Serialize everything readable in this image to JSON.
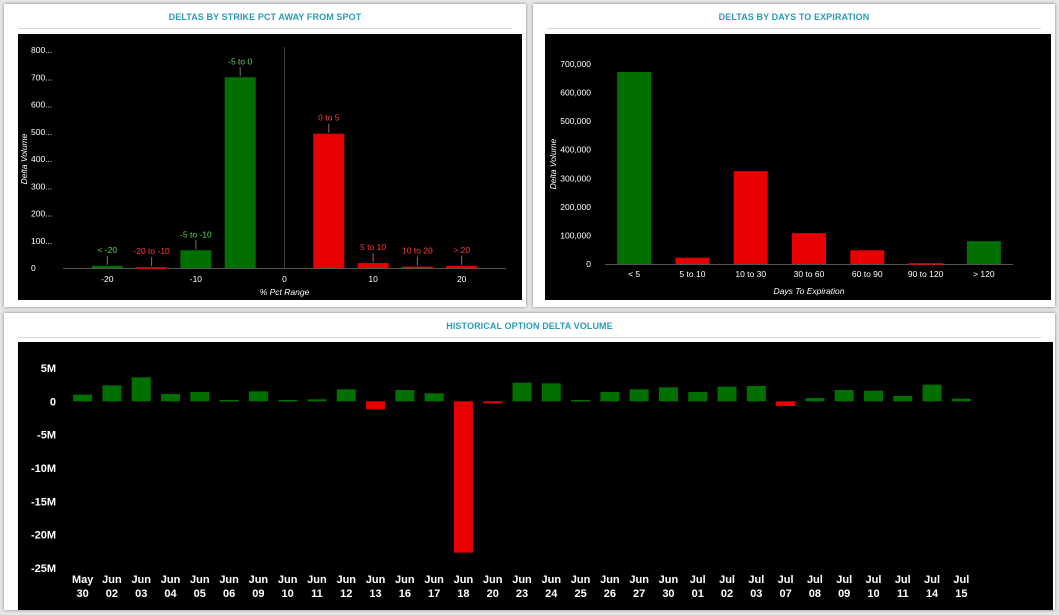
{
  "panels": {
    "strike": {
      "title": "DELTAS BY STRIKE PCT AWAY FROM SPOT"
    },
    "dte": {
      "title": "DELTAS BY DAYS TO EXPIRATION"
    },
    "hist": {
      "title": "HISTORICAL OPTION DELTA VOLUME"
    }
  },
  "colors": {
    "positive": "#027000",
    "negative": "#e80000",
    "background": "#000000",
    "axis_text": "#ffffff",
    "title": "#2a9bb5",
    "label_green": "#5fd35f",
    "label_red": "#ff3b3b"
  },
  "chart_data": [
    {
      "id": "strike",
      "type": "bar",
      "title": "DELTAS BY STRIKE PCT AWAY FROM SPOT",
      "xlabel": "% Pct Range",
      "ylabel": "Delta Volume",
      "yticks": [
        "0",
        "100...",
        "200...",
        "300...",
        "400...",
        "500...",
        "600...",
        "700...",
        "800..."
      ],
      "ylim": [
        0,
        800
      ],
      "xlim": [
        -25,
        25
      ],
      "xticks": [
        "-20",
        "-10",
        "0",
        "10",
        "20"
      ],
      "bars": [
        {
          "label": "< -20",
          "x": -20,
          "value": 8,
          "sign": "positive"
        },
        {
          "label": "-20 to -10",
          "x": -15,
          "value": 3,
          "sign": "negative"
        },
        {
          "label": "-5 to -10",
          "x": -10,
          "value": 65,
          "sign": "positive"
        },
        {
          "label": "-5 to 0",
          "x": -5,
          "value": 700,
          "sign": "positive"
        },
        {
          "label": "0 to 5",
          "x": 5,
          "value": 493,
          "sign": "negative"
        },
        {
          "label": "5 to 10",
          "x": 10,
          "value": 18,
          "sign": "negative"
        },
        {
          "label": "10 to 20",
          "x": 15,
          "value": 5,
          "sign": "negative"
        },
        {
          "label": "> 20",
          "x": 20,
          "value": 8,
          "sign": "negative"
        }
      ]
    },
    {
      "id": "dte",
      "type": "bar",
      "title": "DELTAS BY DAYS TO EXPIRATION",
      "xlabel": "Days To Expiration",
      "ylabel": "Delta Volume",
      "yticks": [
        "0",
        "100,000",
        "200,000",
        "300,000",
        "400,000",
        "500,000",
        "600,000",
        "700,000"
      ],
      "ylim": [
        0,
        700000
      ],
      "categories": [
        "< 5",
        "5 to 10",
        "10 to 30",
        "30 to 60",
        "60 to 90",
        "90 to 120",
        "> 120"
      ],
      "values": [
        672000,
        22000,
        325000,
        108000,
        48000,
        3000,
        80000
      ],
      "signs": [
        "positive",
        "negative",
        "negative",
        "negative",
        "negative",
        "negative",
        "positive"
      ]
    },
    {
      "id": "hist",
      "type": "bar",
      "title": "HISTORICAL OPTION DELTA VOLUME",
      "xlabel": "",
      "ylabel": "",
      "yticks": [
        "5M",
        "0",
        "-5M",
        "-10M",
        "-15M",
        "-20M",
        "-25M"
      ],
      "ylim": [
        -25,
        5
      ],
      "unit": "M",
      "categories": [
        [
          "May",
          "30"
        ],
        [
          "Jun",
          "02"
        ],
        [
          "Jun",
          "03"
        ],
        [
          "Jun",
          "04"
        ],
        [
          "Jun",
          "05"
        ],
        [
          "Jun",
          "06"
        ],
        [
          "Jun",
          "09"
        ],
        [
          "Jun",
          "10"
        ],
        [
          "Jun",
          "11"
        ],
        [
          "Jun",
          "12"
        ],
        [
          "Jun",
          "13"
        ],
        [
          "Jun",
          "16"
        ],
        [
          "Jun",
          "17"
        ],
        [
          "Jun",
          "18"
        ],
        [
          "Jun",
          "20"
        ],
        [
          "Jun",
          "23"
        ],
        [
          "Jun",
          "24"
        ],
        [
          "Jun",
          "25"
        ],
        [
          "Jun",
          "26"
        ],
        [
          "Jun",
          "27"
        ],
        [
          "Jun",
          "30"
        ],
        [
          "Jul",
          "01"
        ],
        [
          "Jul",
          "02"
        ],
        [
          "Jul",
          "03"
        ],
        [
          "Jul",
          "07"
        ],
        [
          "Jul",
          "08"
        ],
        [
          "Jul",
          "09"
        ],
        [
          "Jul",
          "10"
        ],
        [
          "Jul",
          "11"
        ],
        [
          "Jul",
          "14"
        ],
        [
          "Jul",
          "15"
        ]
      ],
      "values": [
        1.0,
        2.4,
        3.6,
        1.1,
        1.4,
        0.2,
        1.5,
        0.2,
        0.3,
        1.8,
        -1.2,
        1.7,
        1.2,
        -22.7,
        -0.3,
        2.8,
        2.7,
        0.2,
        1.4,
        1.8,
        2.1,
        1.4,
        2.2,
        2.3,
        -0.7,
        0.5,
        1.7,
        1.6,
        0.8,
        2.5,
        0.4
      ]
    }
  ]
}
